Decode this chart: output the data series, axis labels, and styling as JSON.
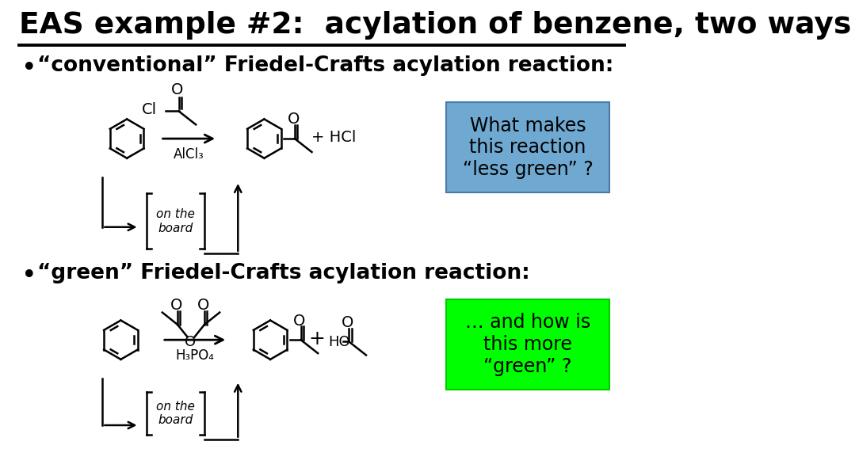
{
  "title": "EAS example #2:  acylation of benzene, two ways",
  "bullet1": "“conventional” Friedel-Crafts acylation reaction:",
  "bullet2": "“green” Friedel-Crafts acylation reaction:",
  "box1_lines": [
    "What makes",
    "this reaction",
    "“less green” ?"
  ],
  "box1_color": "#6fa8d0",
  "box2_lines": [
    "… and how is",
    "this more",
    "“green” ?"
  ],
  "box2_color": "#00ff00",
  "on_the_board": "on the\nboard",
  "alcl3": "AlCl₃",
  "h3po4": "H₃PO₄",
  "hcl": "+ HCl",
  "background": "#ffffff"
}
